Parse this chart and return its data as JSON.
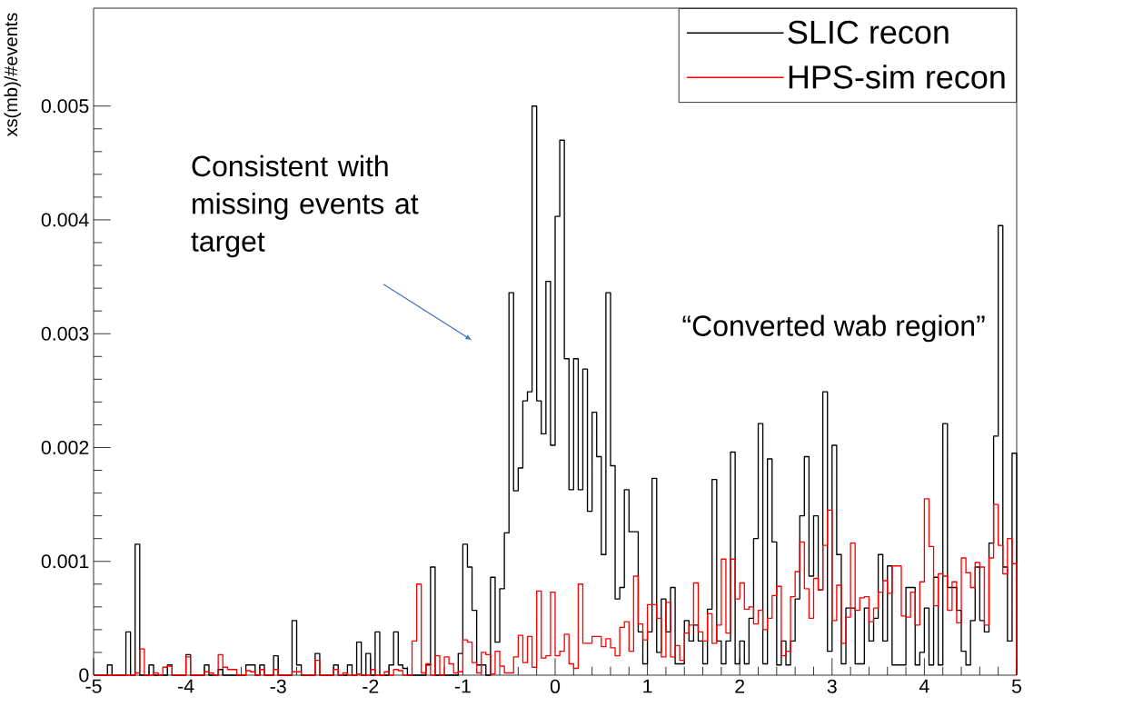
{
  "chart_data": {
    "type": "histogram",
    "ylabel": "xs(mb)/#events",
    "bins": [
      -5,
      -4.95,
      -4.9,
      -4.85,
      -4.8,
      -4.75,
      -4.7,
      -4.65,
      -4.6,
      -4.55,
      -4.5,
      -4.45,
      -4.4,
      -4.35,
      -4.3,
      -4.25,
      -4.2,
      -4.15,
      -4.1,
      -4.05,
      -4,
      -3.95,
      -3.9,
      -3.85,
      -3.8,
      -3.75,
      -3.7,
      -3.65,
      -3.6,
      -3.55,
      -3.5,
      -3.45,
      -3.4,
      -3.35,
      -3.3,
      -3.25,
      -3.2,
      -3.15,
      -3.1,
      -3.05,
      -3,
      -2.95,
      -2.9,
      -2.85,
      -2.8,
      -2.75,
      -2.7,
      -2.65,
      -2.6,
      -2.55,
      -2.5,
      -2.45,
      -2.4,
      -2.35,
      -2.3,
      -2.25,
      -2.2,
      -2.15,
      -2.1,
      -2.05,
      -2,
      -1.95,
      -1.9,
      -1.85,
      -1.8,
      -1.75,
      -1.7,
      -1.65,
      -1.6,
      -1.55,
      -1.5,
      -1.45,
      -1.4,
      -1.35,
      -1.3,
      -1.25,
      -1.2,
      -1.15,
      -1.1,
      -1.05,
      -1,
      -0.95,
      -0.9,
      -0.85,
      -0.8,
      -0.75,
      -0.7,
      -0.65,
      -0.6,
      -0.55,
      -0.5,
      -0.45,
      -0.4,
      -0.35,
      -0.3,
      -0.25,
      -0.2,
      -0.15,
      -0.1,
      -0.05,
      0,
      0.05,
      0.1,
      0.15,
      0.2,
      0.25,
      0.3,
      0.35,
      0.4,
      0.45,
      0.5,
      0.55,
      0.6,
      0.65,
      0.7,
      0.75,
      0.8,
      0.85,
      0.9,
      0.95,
      1,
      1.05,
      1.1,
      1.15,
      1.2,
      1.25,
      1.3,
      1.35,
      1.4,
      1.45,
      1.5,
      1.55,
      1.6,
      1.65,
      1.7,
      1.75,
      1.8,
      1.85,
      1.9,
      1.95,
      2,
      2.05,
      2.1,
      2.15,
      2.2,
      2.25,
      2.3,
      2.35,
      2.4,
      2.45,
      2.5,
      2.55,
      2.6,
      2.65,
      2.7,
      2.75,
      2.8,
      2.85,
      2.9,
      2.95,
      3,
      3.05,
      3.1,
      3.15,
      3.2,
      3.25,
      3.3,
      3.35,
      3.4,
      3.45,
      3.5,
      3.55,
      3.6,
      3.65,
      3.7,
      3.75,
      3.8,
      3.85,
      3.9,
      3.95,
      4,
      4.05,
      4.1,
      4.15,
      4.2,
      4.25,
      4.3,
      4.35,
      4.4,
      4.45,
      4.5,
      4.55,
      4.6,
      4.65,
      4.7,
      4.75,
      4.8,
      4.85,
      4.9,
      4.95,
      5
    ],
    "series": [
      {
        "name": "SLIC recon",
        "color": "#000000",
        "values": [
          0,
          0,
          0,
          9e-05,
          0,
          0,
          0,
          0.00038,
          0,
          0.00115,
          0,
          0,
          9e-05,
          0,
          0,
          0,
          9e-05,
          0,
          0,
          0,
          0.00018,
          0,
          0,
          0,
          9e-05,
          0,
          0,
          5e-05,
          0,
          0,
          0,
          0,
          0,
          9e-05,
          9e-05,
          0,
          9e-05,
          0,
          0,
          0.00017,
          0,
          0,
          0,
          0.00048,
          9e-05,
          0,
          0,
          0,
          0.00019,
          0,
          0,
          0,
          9e-05,
          0,
          0,
          9e-05,
          0,
          0.00029,
          0,
          0.00019,
          0,
          0.00038,
          0,
          0,
          9e-05,
          0.00038,
          9e-05,
          6e-05,
          0,
          0,
          0,
          0,
          9e-05,
          0.00095,
          0,
          0,
          0,
          0,
          0,
          0.00019,
          0.00115,
          0.00095,
          0.00057,
          9e-05,
          9e-05,
          0,
          0.00086,
          0.00029,
          0.00076,
          0.00125,
          0.00336,
          0.00162,
          0.00182,
          0.00241,
          0.00249,
          0.005,
          0.00241,
          0.00212,
          0.00346,
          0.00202,
          0.00403,
          0.0047,
          0.00278,
          0.00163,
          0.00278,
          0.00163,
          0.00269,
          0.00144,
          0.00231,
          0.00192,
          0.00106,
          0.00336,
          0.00184,
          0.00067,
          0.00077,
          0.00163,
          0.00126,
          0.00126,
          0.00038,
          0.0001,
          0.00038,
          0.00173,
          0.0002,
          0.00067,
          0.00038,
          0.00077,
          0.0001,
          0.0001,
          0.00048,
          0.0003,
          0.00044,
          0.0003,
          0.0001,
          0.00058,
          0.00172,
          0.0003,
          0.0001,
          0.0003,
          0.00196,
          0.0001,
          0.0003,
          0.0001,
          0.0005,
          0.0012,
          0.00221,
          0.0001,
          0.0019,
          0.00117,
          9e-05,
          0.0003,
          9e-05,
          0.0003,
          0.00067,
          0.0014,
          0.00192,
          0.00087,
          0.0014,
          0.00075,
          0.00249,
          0.00021,
          0.00202,
          0.00106,
          0.0001,
          0.00059,
          0.00059,
          0.0001,
          0.0001,
          0.00059,
          0.0003,
          0.0005,
          0.00106,
          0.0003,
          0.00096,
          9e-05,
          9e-05,
          9e-05,
          0.00077,
          0.00077,
          9e-05,
          0.0002,
          0.00059,
          9e-05,
          0.00086,
          9e-05,
          0.00221,
          0.00077,
          0.00077,
          0.00057,
          0.00021,
          9e-05,
          0.00048,
          0.00095,
          0.00048,
          0.00038,
          0.00116,
          0.0021,
          0.00395,
          0.00095,
          0.0003,
          0.00195
        ]
      },
      {
        "name": "HPS-sim recon",
        "color": "#ff0000",
        "values": [
          0,
          0,
          0,
          0,
          0,
          0,
          0,
          0,
          0,
          2e-05,
          0.00023,
          0,
          0,
          2e-05,
          0,
          7e-05,
          8e-05,
          0,
          0,
          0,
          0.00016,
          0,
          0,
          0,
          3e-05,
          2e-05,
          0,
          0.00018,
          7e-05,
          5e-05,
          5e-05,
          0,
          0,
          4e-05,
          3e-05,
          0,
          5e-05,
          0,
          0,
          5e-05,
          0,
          0,
          0,
          3e-05,
          3e-05,
          0,
          0,
          0,
          0.00013,
          0,
          0,
          0,
          5e-05,
          0,
          2e-05,
          0,
          0,
          1e-05,
          0,
          0,
          5e-05,
          0,
          0,
          3e-05,
          0,
          5e-05,
          4e-05,
          0,
          0,
          0.0003,
          0.0008,
          2e-05,
          0.0001,
          0,
          0.00017,
          0,
          0.00016,
          0.0001,
          2e-05,
          3e-05,
          0.00031,
          0.00029,
          0.00011,
          2e-05,
          0.0002,
          0.00018,
          1e-05,
          0.00021,
          8e-05,
          2e-05,
          2e-05,
          0.00016,
          0.00035,
          0.00011,
          0.00034,
          7e-05,
          0.00074,
          0.00015,
          0.00017,
          0.00073,
          0.00017,
          0.00021,
          0.00036,
          0.0001,
          6e-05,
          0.0008,
          0.00028,
          0.00028,
          0.00034,
          0.00034,
          0.00025,
          0.00032,
          0.00024,
          0.00017,
          0.00042,
          0.00047,
          0.00021,
          0.00087,
          0.00045,
          0.00031,
          0.00062,
          0.00062,
          0.0005,
          0.00016,
          0.00064,
          0.00016,
          0.00026,
          0.00013,
          0.00037,
          0.00044,
          0.00081,
          0.00038,
          0.0003,
          0.00054,
          0.00028,
          0.00044,
          0.00102,
          0.00037,
          0.00102,
          0.00067,
          0.00081,
          0.00058,
          0.0006,
          0.00045,
          0.00057,
          0.0004,
          0.0005,
          0.0007,
          0.00078,
          0.00017,
          0.00021,
          0.00069,
          0.00091,
          0.00117,
          0.00076,
          0.0005,
          0.00085,
          0.00075,
          0.00114,
          0.00145,
          0.00048,
          0.00079,
          0.00028,
          0.00051,
          0.00116,
          0.00057,
          0.00068,
          0.00069,
          0.00047,
          0.00059,
          0.00073,
          0.00083,
          0.00072,
          0.00096,
          0.00096,
          0.00052,
          0.00051,
          0.00073,
          0.00044,
          0.00082,
          0.00155,
          0.00113,
          0.00061,
          0.00089,
          0.00087,
          0.00057,
          0.00082,
          0.00046,
          0.00103,
          0.0009,
          0.00077,
          0.00099,
          0.00095,
          0.00044,
          0.00103,
          0.0015,
          0.00114,
          0.00089,
          0.0012,
          0.00098
        ]
      }
    ],
    "xlim": [
      -5,
      5
    ],
    "ylim": [
      0,
      0.00586
    ],
    "xticks": [
      -5,
      -4,
      -3,
      -2,
      -1,
      0,
      1,
      2,
      3,
      4,
      5
    ],
    "yticks": [
      0,
      0.001,
      0.002,
      0.003,
      0.004,
      0.005
    ],
    "legend": "top right",
    "annotations": [
      "Consistent with missing events at target",
      "“Converted wab region”"
    ]
  }
}
